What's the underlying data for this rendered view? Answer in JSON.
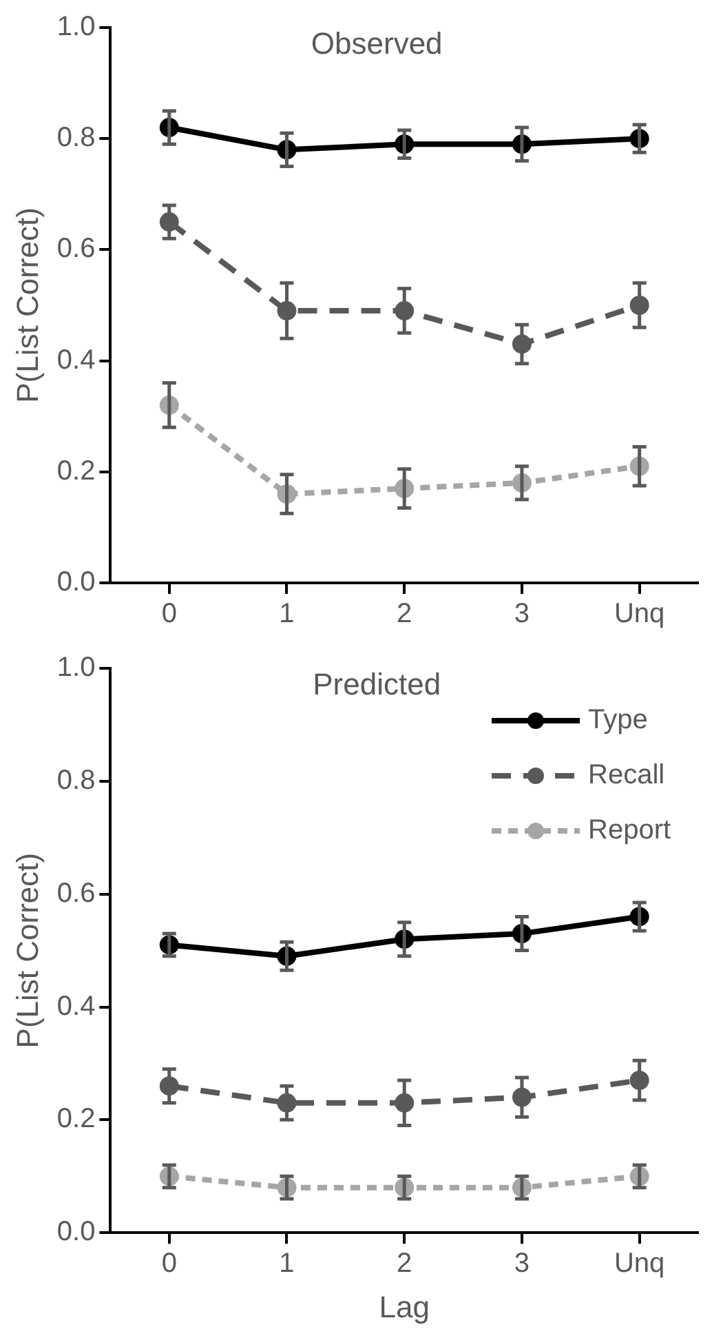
{
  "chart_data": [
    {
      "type": "line",
      "title": "Observed",
      "ylabel": "P(List Correct)",
      "categories": [
        "0",
        "1",
        "2",
        "3",
        "Unq"
      ],
      "ylim": [
        0,
        1
      ],
      "yticks": [
        {
          "value": 0,
          "label": "0.0"
        },
        {
          "value": 0.2,
          "label": "0.2"
        },
        {
          "value": 0.4,
          "label": "0.4"
        },
        {
          "value": 0.6,
          "label": "0.6"
        },
        {
          "value": 0.8,
          "label": "0.8"
        },
        {
          "value": 1,
          "label": "1.0"
        }
      ],
      "grid": false,
      "legend": false,
      "marker": "circle",
      "series": [
        {
          "color": "#000000",
          "line_style": "solid",
          "values": [
            0.82,
            0.78,
            0.79,
            0.79,
            0.8
          ],
          "errors": [
            0.03,
            0.03,
            0.025,
            0.03,
            0.025
          ]
        },
        {
          "color": "#595959",
          "line_style": "dashed",
          "values": [
            0.65,
            0.49,
            0.49,
            0.43,
            0.5
          ],
          "errors": [
            0.03,
            0.05,
            0.04,
            0.035,
            0.04
          ]
        },
        {
          "color": "#a6a6a6",
          "line_style": "dotted",
          "values": [
            0.32,
            0.16,
            0.17,
            0.18,
            0.21
          ],
          "errors": [
            0.04,
            0.035,
            0.035,
            0.03,
            0.035
          ]
        }
      ]
    },
    {
      "type": "line",
      "title": "Predicted",
      "xlabel": "Lag",
      "ylabel": "P(List Correct)",
      "categories": [
        "0",
        "1",
        "2",
        "3",
        "Unq"
      ],
      "ylim": [
        0,
        1
      ],
      "yticks": [
        {
          "value": 0,
          "label": "0.0"
        },
        {
          "value": 0.2,
          "label": "0.2"
        },
        {
          "value": 0.4,
          "label": "0.4"
        },
        {
          "value": 0.6,
          "label": "0.6"
        },
        {
          "value": 0.8,
          "label": "0.8"
        },
        {
          "value": 1,
          "label": "1.0"
        }
      ],
      "grid": false,
      "legend": "top right",
      "marker": "circle",
      "series": [
        {
          "name": "Type",
          "color": "#000000",
          "line_style": "solid",
          "values": [
            0.51,
            0.49,
            0.52,
            0.53,
            0.56
          ],
          "errors": [
            0.02,
            0.025,
            0.03,
            0.03,
            0.025
          ]
        },
        {
          "name": "Recall",
          "color": "#595959",
          "line_style": "dashed",
          "values": [
            0.26,
            0.23,
            0.23,
            0.24,
            0.27
          ],
          "errors": [
            0.03,
            0.03,
            0.04,
            0.035,
            0.035
          ]
        },
        {
          "name": "Report",
          "color": "#a6a6a6",
          "line_style": "dotted",
          "values": [
            0.1,
            0.08,
            0.08,
            0.08,
            0.1
          ],
          "errors": [
            0.02,
            0.02,
            0.02,
            0.02,
            0.02
          ]
        }
      ]
    }
  ]
}
